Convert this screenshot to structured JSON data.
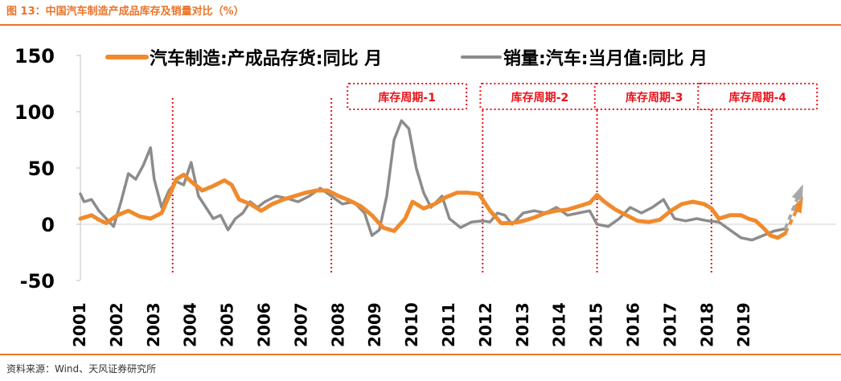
{
  "figure": {
    "title": "图 13：中国汽车制造产成品库存及销量对比（%）",
    "source": "资料来源：Wind、天风证券研究所"
  },
  "colors": {
    "accent": "#e8742a",
    "series_orange": "#f08a2c",
    "series_gray": "#8c8c8c",
    "marker_red": "#e8141b",
    "arrow_gray": "#a8a8a8"
  },
  "chart_data": {
    "type": "line",
    "title": "",
    "xlabel": "",
    "ylabel": "",
    "ylim": [
      -50,
      150
    ],
    "yticks": [
      -50,
      0,
      50,
      100,
      150
    ],
    "xlim": [
      2001,
      2021
    ],
    "xticks": [
      2001,
      2002,
      2003,
      2004,
      2005,
      2006,
      2007,
      2008,
      2009,
      2010,
      2011,
      2012,
      2013,
      2014,
      2015,
      2016,
      2017,
      2018,
      2019
    ],
    "grid": false,
    "legend": "top",
    "series": [
      {
        "name": "汽车制造:产成品存货:同比 月",
        "color": "#f08a2c",
        "points": [
          [
            2001.0,
            5
          ],
          [
            2001.3,
            8
          ],
          [
            2001.5,
            4
          ],
          [
            2001.7,
            1
          ],
          [
            2002.0,
            8
          ],
          [
            2002.3,
            12
          ],
          [
            2002.6,
            7
          ],
          [
            2002.9,
            5
          ],
          [
            2003.2,
            10
          ],
          [
            2003.4,
            25
          ],
          [
            2003.6,
            40
          ],
          [
            2003.8,
            44
          ],
          [
            2004.0,
            38
          ],
          [
            2004.3,
            30
          ],
          [
            2004.6,
            34
          ],
          [
            2004.9,
            39
          ],
          [
            2005.1,
            35
          ],
          [
            2005.3,
            22
          ],
          [
            2005.6,
            18
          ],
          [
            2005.9,
            12
          ],
          [
            2006.2,
            18
          ],
          [
            2006.5,
            22
          ],
          [
            2006.8,
            25
          ],
          [
            2007.1,
            28
          ],
          [
            2007.4,
            30
          ],
          [
            2007.7,
            30
          ],
          [
            2008.0,
            25
          ],
          [
            2008.3,
            21
          ],
          [
            2008.6,
            16
          ],
          [
            2008.9,
            8
          ],
          [
            2009.2,
            -3
          ],
          [
            2009.5,
            -6
          ],
          [
            2009.8,
            5
          ],
          [
            2010.0,
            20
          ],
          [
            2010.3,
            14
          ],
          [
            2010.6,
            18
          ],
          [
            2010.9,
            24
          ],
          [
            2011.2,
            28
          ],
          [
            2011.5,
            28
          ],
          [
            2011.8,
            27
          ],
          [
            2012.1,
            12
          ],
          [
            2012.4,
            1
          ],
          [
            2012.7,
            1
          ],
          [
            2013.0,
            3
          ],
          [
            2013.3,
            6
          ],
          [
            2013.6,
            10
          ],
          [
            2013.9,
            12
          ],
          [
            2014.2,
            13
          ],
          [
            2014.5,
            16
          ],
          [
            2014.8,
            19
          ],
          [
            2015.0,
            26
          ],
          [
            2015.2,
            20
          ],
          [
            2015.5,
            13
          ],
          [
            2015.8,
            8
          ],
          [
            2016.1,
            3
          ],
          [
            2016.4,
            2
          ],
          [
            2016.7,
            4
          ],
          [
            2017.0,
            12
          ],
          [
            2017.3,
            18
          ],
          [
            2017.6,
            20
          ],
          [
            2017.9,
            18
          ],
          [
            2018.1,
            14
          ],
          [
            2018.3,
            5
          ],
          [
            2018.6,
            8
          ],
          [
            2018.9,
            8
          ],
          [
            2019.1,
            5
          ],
          [
            2019.3,
            3
          ],
          [
            2019.5,
            -3
          ],
          [
            2019.7,
            -10
          ],
          [
            2019.9,
            -12
          ],
          [
            2020.1,
            -8
          ]
        ]
      },
      {
        "name": "销量:汽车:当月值:同比 月",
        "color": "#8c8c8c",
        "points": [
          [
            2001.0,
            27
          ],
          [
            2001.1,
            20
          ],
          [
            2001.3,
            22
          ],
          [
            2001.5,
            12
          ],
          [
            2001.7,
            5
          ],
          [
            2001.9,
            -2
          ],
          [
            2002.1,
            20
          ],
          [
            2002.3,
            45
          ],
          [
            2002.5,
            40
          ],
          [
            2002.7,
            52
          ],
          [
            2002.9,
            68
          ],
          [
            2003.0,
            40
          ],
          [
            2003.2,
            15
          ],
          [
            2003.4,
            30
          ],
          [
            2003.6,
            38
          ],
          [
            2003.8,
            35
          ],
          [
            2004.0,
            55
          ],
          [
            2004.2,
            25
          ],
          [
            2004.4,
            15
          ],
          [
            2004.6,
            5
          ],
          [
            2004.8,
            8
          ],
          [
            2005.0,
            -5
          ],
          [
            2005.2,
            5
          ],
          [
            2005.4,
            10
          ],
          [
            2005.6,
            20
          ],
          [
            2005.8,
            15
          ],
          [
            2006.0,
            20
          ],
          [
            2006.3,
            25
          ],
          [
            2006.6,
            23
          ],
          [
            2006.9,
            20
          ],
          [
            2007.2,
            25
          ],
          [
            2007.5,
            32
          ],
          [
            2007.8,
            25
          ],
          [
            2008.1,
            18
          ],
          [
            2008.4,
            20
          ],
          [
            2008.7,
            10
          ],
          [
            2008.9,
            -10
          ],
          [
            2009.1,
            -5
          ],
          [
            2009.3,
            25
          ],
          [
            2009.5,
            75
          ],
          [
            2009.7,
            92
          ],
          [
            2009.9,
            85
          ],
          [
            2010.1,
            50
          ],
          [
            2010.3,
            28
          ],
          [
            2010.5,
            15
          ],
          [
            2010.8,
            25
          ],
          [
            2011.0,
            5
          ],
          [
            2011.3,
            -3
          ],
          [
            2011.6,
            2
          ],
          [
            2011.9,
            3
          ],
          [
            2012.1,
            2
          ],
          [
            2012.3,
            10
          ],
          [
            2012.5,
            8
          ],
          [
            2012.7,
            0
          ],
          [
            2013.0,
            10
          ],
          [
            2013.3,
            12
          ],
          [
            2013.6,
            10
          ],
          [
            2013.9,
            15
          ],
          [
            2014.2,
            8
          ],
          [
            2014.5,
            10
          ],
          [
            2014.8,
            12
          ],
          [
            2015.0,
            0
          ],
          [
            2015.3,
            -2
          ],
          [
            2015.6,
            5
          ],
          [
            2015.9,
            15
          ],
          [
            2016.2,
            10
          ],
          [
            2016.5,
            15
          ],
          [
            2016.8,
            22
          ],
          [
            2017.1,
            5
          ],
          [
            2017.4,
            3
          ],
          [
            2017.7,
            5
          ],
          [
            2018.0,
            3
          ],
          [
            2018.3,
            2
          ],
          [
            2018.6,
            -5
          ],
          [
            2018.9,
            -12
          ],
          [
            2019.2,
            -14
          ],
          [
            2019.5,
            -10
          ],
          [
            2019.8,
            -6
          ],
          [
            2020.1,
            -4
          ]
        ]
      }
    ],
    "projections": [
      {
        "series": "汽车制造:产成品存货:同比 月",
        "from": [
          2020.1,
          -8
        ],
        "to": [
          2020.55,
          22
        ],
        "color": "#f08a2c"
      },
      {
        "series": "销量:汽车:当月值:同比 月",
        "from": [
          2020.1,
          -4
        ],
        "to": [
          2020.55,
          33
        ],
        "color": "#a8a8a8"
      }
    ],
    "vertical_markers": [
      2003.5,
      2007.8,
      2011.9,
      2015.0,
      2018.1
    ],
    "periods": [
      {
        "label": "库存周期-1",
        "from": 2007.8,
        "to": 2011.9
      },
      {
        "label": "库存周期-2",
        "from": 2011.9,
        "to": 2015.0
      },
      {
        "label": "库存周期-3",
        "from": 2015.0,
        "to": 2018.1
      },
      {
        "label": "库存周期-4",
        "from": 2018.1,
        "to": 2021.0
      }
    ]
  }
}
